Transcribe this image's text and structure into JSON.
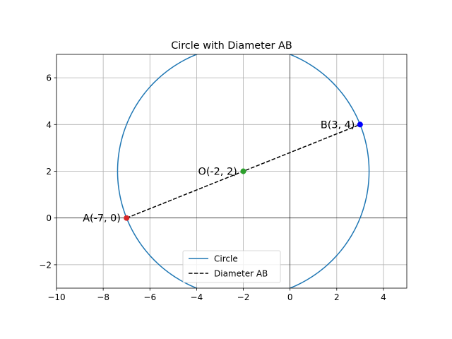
{
  "chart_data": {
    "type": "line",
    "title": "Circle with Diameter AB",
    "xlabel": "",
    "ylabel": "",
    "xlim": [
      -10,
      5
    ],
    "ylim": [
      -3,
      7
    ],
    "xticks": [
      -10,
      -8,
      -6,
      -4,
      -2,
      0,
      2,
      4
    ],
    "yticks": [
      -2,
      0,
      2,
      4,
      6
    ],
    "xtick_labels": [
      "−10",
      "−8",
      "−6",
      "−4",
      "−2",
      "0",
      "2",
      "4"
    ],
    "ytick_labels": [
      "−2",
      "0",
      "2",
      "4",
      "6"
    ],
    "grid": true,
    "legend_position": "lower-center",
    "circle": {
      "center": [
        -2,
        2
      ],
      "radius": 5.385,
      "color": "#1f77b4"
    },
    "series": [
      {
        "name": "Circle",
        "style": "solid",
        "color": "#1f77b4"
      },
      {
        "name": "Diameter AB",
        "style": "dashed",
        "color": "#000000",
        "x": [
          -7,
          3
        ],
        "y": [
          0,
          4
        ]
      }
    ],
    "points": [
      {
        "label": "A(-7, 0)",
        "x": -7,
        "y": 0,
        "color": "#d62728"
      },
      {
        "label": "B(3, 4)",
        "x": 3,
        "y": 4,
        "color": "#0000ff"
      },
      {
        "label": "O(-2, 2)",
        "x": -2,
        "y": 2,
        "color": "#2ca02c"
      }
    ],
    "reference_lines": {
      "x0": true,
      "y0": true
    }
  }
}
